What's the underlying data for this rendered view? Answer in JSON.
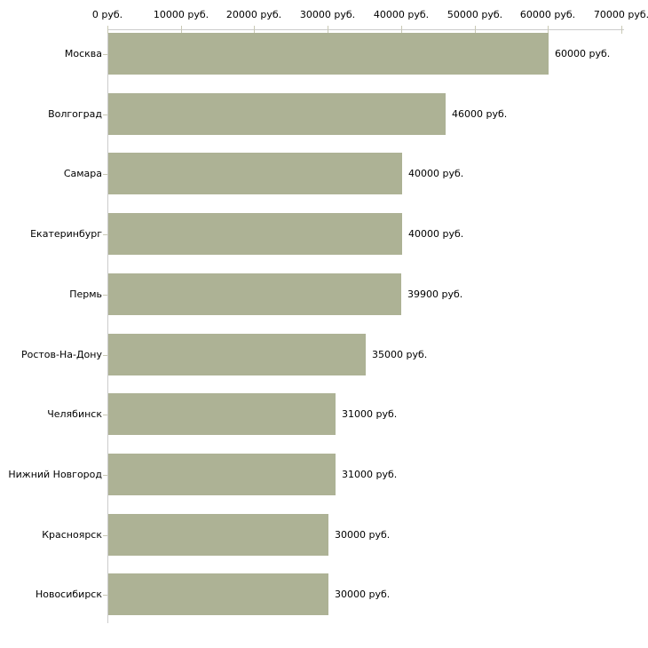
{
  "chart_data": {
    "type": "bar",
    "orientation": "horizontal",
    "title": "",
    "xlabel": "",
    "ylabel": "",
    "unit": "руб.",
    "xlim": [
      0,
      70000
    ],
    "grid": false,
    "legend": "none",
    "categories": [
      "Москва",
      "Волгоград",
      "Самара",
      "Екатеринбург",
      "Пермь",
      "Ростов-На-Дону",
      "Челябинск",
      "Нижний Новгород",
      "Красноярск",
      "Новосибирск"
    ],
    "values": [
      60000,
      46000,
      40000,
      40000,
      39900,
      35000,
      31000,
      31000,
      30000,
      30000
    ],
    "value_labels": [
      "60000 руб.",
      "46000 руб.",
      "40000 руб.",
      "40000 руб.",
      "39900 руб.",
      "35000 руб.",
      "31000 руб.",
      "31000 руб.",
      "30000 руб.",
      "30000 руб."
    ],
    "x_tick_values": [
      0,
      10000,
      20000,
      30000,
      40000,
      50000,
      60000,
      70000
    ],
    "x_tick_labels": [
      "0 руб.",
      "10000 руб.",
      "20000 руб.",
      "30000 руб.",
      "40000 руб.",
      "50000 руб.",
      "60000 руб.",
      "70000 руб."
    ],
    "colors": {
      "bar": "#adb295",
      "axis": "#cccccc",
      "tick": "#c9c9b5",
      "text": "#000000",
      "background": "#ffffff"
    }
  }
}
